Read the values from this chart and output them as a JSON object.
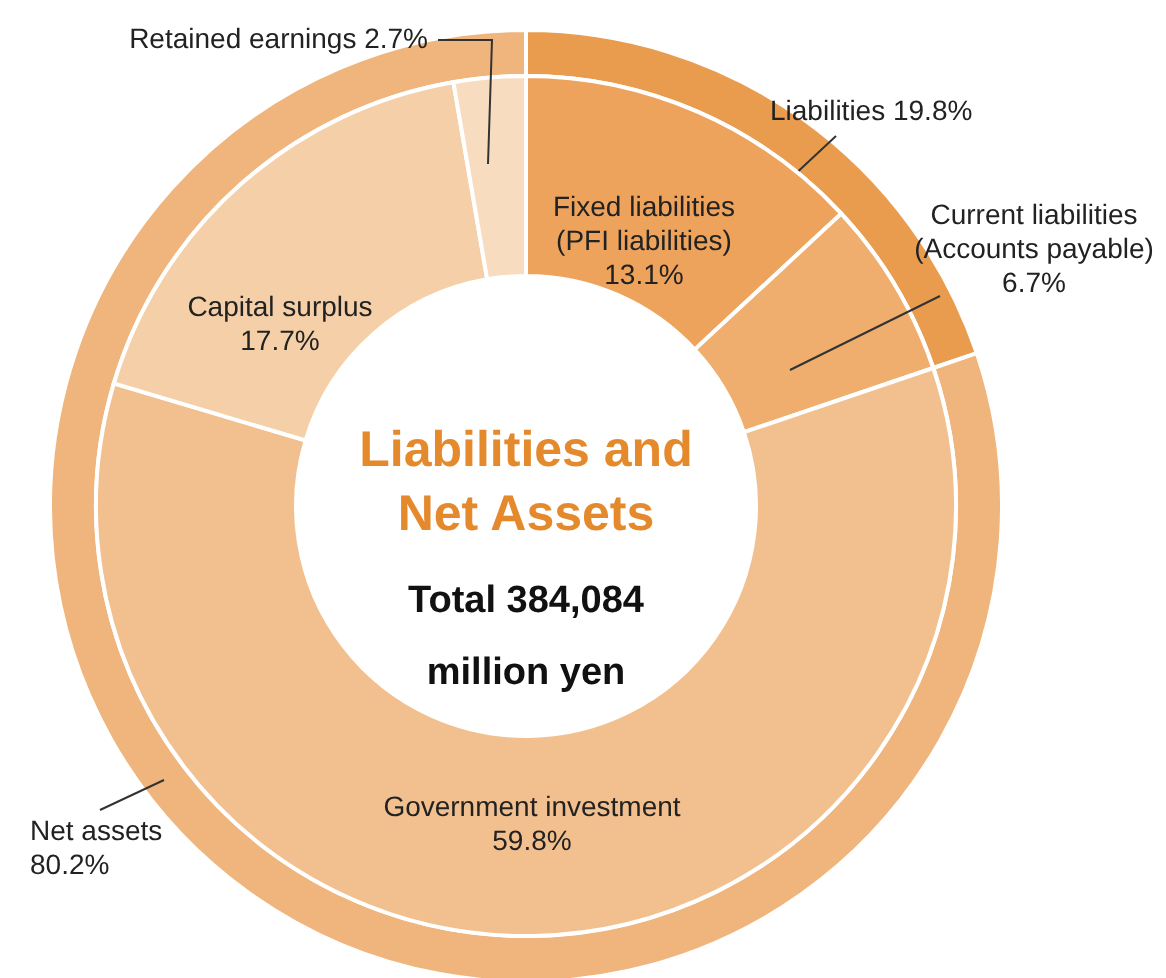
{
  "chart_data": [
    {
      "type": "donut",
      "title": "Liabilities and Net Assets",
      "subtitle": "Total 384,084 million yen",
      "categories": [
        "Liabilities",
        "Net assets"
      ],
      "values": [
        19.8,
        80.2
      ],
      "value_labels": [
        "19.8%",
        "80.2%"
      ],
      "colors": [
        "#e99c4e",
        "#efb57c"
      ]
    },
    {
      "type": "donut",
      "categories": [
        "Fixed liabilities (PFI liabilities)",
        "Current liabilities (Accounts payable)",
        "Government investment",
        "Capital surplus",
        "Retained earnings"
      ],
      "values": [
        13.1,
        6.7,
        59.8,
        17.7,
        2.7
      ],
      "value_labels": [
        "13.1%",
        "6.7%",
        "59.8%",
        "17.7%",
        "2.7%"
      ],
      "colors": [
        "#eda35c",
        "#efae6e",
        "#f2c08e",
        "#f5cfa7",
        "#f8dcc0"
      ]
    }
  ]
}
